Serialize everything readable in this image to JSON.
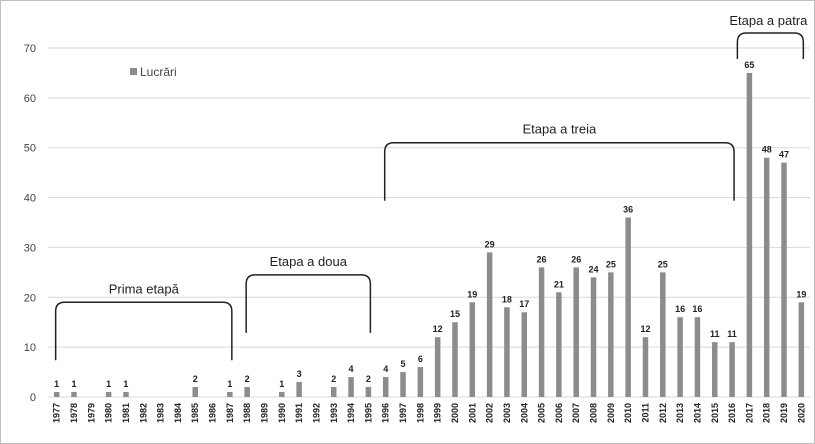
{
  "chart_data": {
    "type": "bar",
    "categories": [
      "1977",
      "1978",
      "1979",
      "1980",
      "1981",
      "1982",
      "1983",
      "1984",
      "1985",
      "1986",
      "1987",
      "1988",
      "1989",
      "1990",
      "1991",
      "1992",
      "1993",
      "1994",
      "1995",
      "1996",
      "1997",
      "1998",
      "1999",
      "2000",
      "2001",
      "2002",
      "2003",
      "2004",
      "2005",
      "2006",
      "2007",
      "2008",
      "2009",
      "2010",
      "2011",
      "2012",
      "2013",
      "2014",
      "2015",
      "2016",
      "2017",
      "2018",
      "2019",
      "2020"
    ],
    "series": [
      {
        "name": "Lucrări",
        "values": [
          1,
          1,
          0,
          1,
          1,
          0,
          0,
          0,
          2,
          0,
          1,
          2,
          0,
          1,
          3,
          0,
          2,
          4,
          2,
          4,
          5,
          6,
          12,
          15,
          19,
          29,
          18,
          17,
          26,
          21,
          26,
          24,
          25,
          36,
          12,
          25,
          16,
          16,
          11,
          11,
          65,
          48,
          47,
          19
        ],
        "labels": [
          "1",
          "1",
          "",
          "1",
          "1",
          "",
          "",
          "",
          "2",
          "",
          "1",
          "2",
          "",
          "1",
          "3",
          "",
          "2",
          "4",
          "2",
          "4",
          "5",
          "6",
          "12",
          "15",
          "19",
          "29",
          "18",
          "17",
          "26",
          "21",
          "26",
          "24",
          "25",
          "36",
          "12",
          "25",
          "16",
          "16",
          "11",
          "11",
          "65",
          "48",
          "47",
          "19"
        ]
      }
    ],
    "ylim": [
      0,
      70
    ],
    "yticks": [
      0,
      10,
      20,
      30,
      40,
      50,
      60,
      70
    ],
    "grid": true,
    "legend_position": "top-left",
    "bar_color": "#8c8c8c",
    "grid_color": "#d9d9d9",
    "phases": [
      {
        "label": "Prima etapă",
        "from": "1977",
        "to": "1987",
        "bracket_level": 19
      },
      {
        "label": "Etapa a doua",
        "from": "1988",
        "to": "1995",
        "bracket_level": 24.5
      },
      {
        "label": "Etapa a treia",
        "from": "1996",
        "to": "2016",
        "bracket_level": 51
      },
      {
        "label": "Etapa a patra",
        "from": "2017",
        "to": "2020",
        "bracket_level": 73
      }
    ]
  }
}
